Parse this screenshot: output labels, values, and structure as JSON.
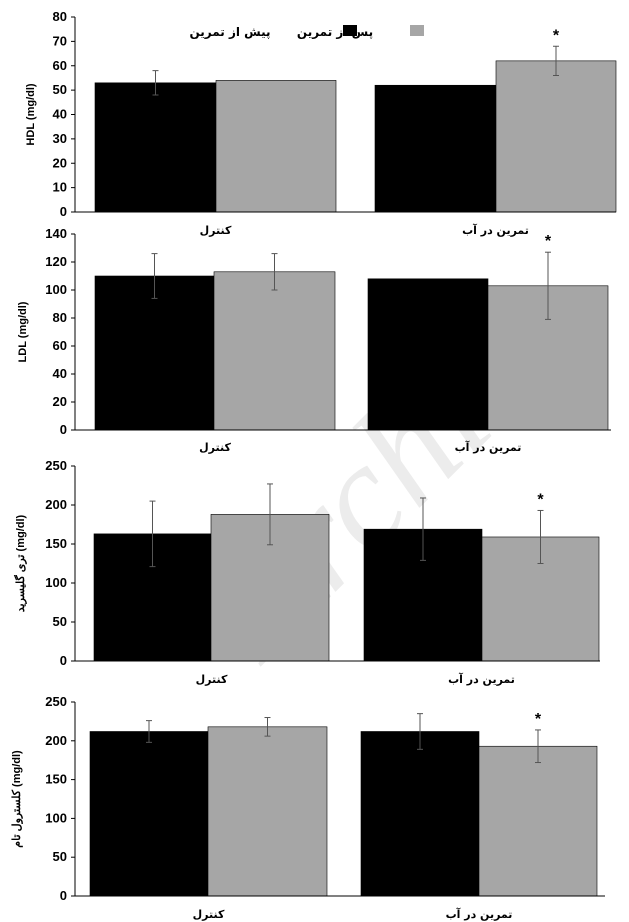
{
  "legend": [
    {
      "label": "پیش از تمرین",
      "color": "#000000"
    },
    {
      "label": "پس از تمرین",
      "color": "#a6a6a6"
    }
  ],
  "watermark": "Archive",
  "chart_data": [
    {
      "type": "bar",
      "ylabel": "HDL (mg/dl)",
      "ylim": [
        0,
        80
      ],
      "ticks": [
        0,
        10,
        20,
        30,
        40,
        50,
        60,
        70,
        80
      ],
      "categories": [
        "کنترل",
        "تمرین در آب"
      ],
      "series": [
        {
          "name": "پیش از تمرین",
          "values": [
            53,
            52
          ],
          "errors": [
            5,
            null
          ]
        },
        {
          "name": "پس از تمرین",
          "values": [
            54,
            62
          ],
          "errors": [
            null,
            6
          ]
        }
      ],
      "significant": [
        false,
        true
      ]
    },
    {
      "type": "bar",
      "ylabel": "LDL (mg/dl)",
      "ylim": [
        0,
        140
      ],
      "ticks": [
        0,
        20,
        40,
        60,
        80,
        100,
        120,
        140
      ],
      "categories": [
        "کنترل",
        "تمرین در آب"
      ],
      "series": [
        {
          "name": "پیش از تمرین",
          "values": [
            110,
            108
          ],
          "errors": [
            16,
            null
          ]
        },
        {
          "name": "پس از تمرین",
          "values": [
            113,
            103
          ],
          "errors": [
            13,
            24
          ]
        }
      ],
      "significant": [
        false,
        true
      ]
    },
    {
      "type": "bar",
      "ylabel": "تری گلیسرید (mg/dl)",
      "ylim": [
        0,
        250
      ],
      "ticks": [
        0,
        50,
        100,
        150,
        200,
        250
      ],
      "categories": [
        "کنترل",
        "تمرین در آب"
      ],
      "series": [
        {
          "name": "پیش از تمرین",
          "values": [
            163,
            169
          ],
          "errors": [
            42,
            40
          ]
        },
        {
          "name": "پس از تمرین",
          "values": [
            188,
            159
          ],
          "errors": [
            39,
            34
          ]
        }
      ],
      "significant": [
        false,
        true
      ]
    },
    {
      "type": "bar",
      "ylabel": "کلسترول تام (mg/dl)",
      "ylim": [
        0,
        250
      ],
      "ticks": [
        0,
        50,
        100,
        150,
        200,
        250
      ],
      "categories": [
        "کنترل",
        "تمرین در آب"
      ],
      "series": [
        {
          "name": "پیش از تمرین",
          "values": [
            212,
            212
          ],
          "errors": [
            14,
            23
          ]
        },
        {
          "name": "پس از تمرین",
          "values": [
            218,
            193
          ],
          "errors": [
            12,
            21
          ]
        }
      ],
      "significant": [
        false,
        true
      ]
    }
  ]
}
